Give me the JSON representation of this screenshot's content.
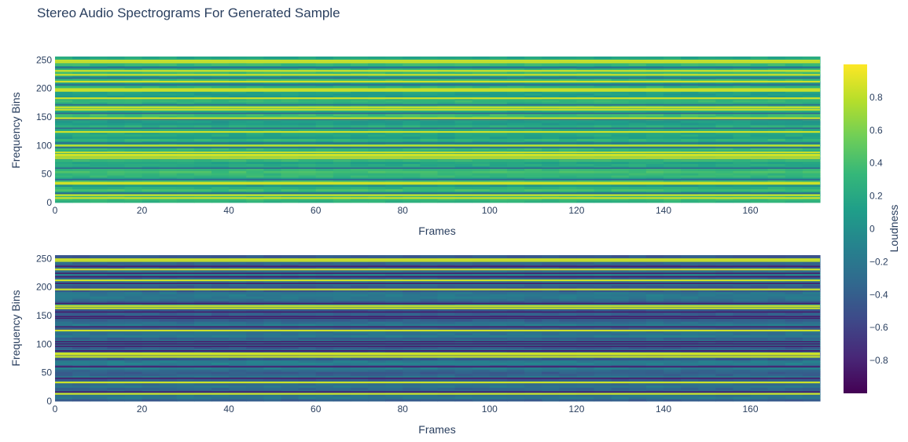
{
  "chart_data": {
    "type": "heatmap",
    "title": "Stereo Audio Spectrograms For Generated Sample",
    "colorscale": "Viridis",
    "colorscale_stops": [
      "#440154",
      "#482878",
      "#3e4989",
      "#31688e",
      "#26828e",
      "#1f9e89",
      "#35b779",
      "#6ece58",
      "#b5de2b",
      "#fde725"
    ],
    "zlim": [
      -1,
      1
    ],
    "colorbar": {
      "title": "Loudness",
      "ticks": [
        "0.8",
        "0.6",
        "0.4",
        "0.2",
        "0",
        "−0.2",
        "−0.4",
        "−0.6",
        "−0.8"
      ]
    },
    "panels": [
      {
        "name": "top",
        "xlabel": "Frames",
        "ylabel": "Frequency Bins",
        "xlim": [
          0,
          176
        ],
        "ylim": [
          0,
          256
        ],
        "xticks": [
          "0",
          "20",
          "40",
          "60",
          "80",
          "100",
          "120",
          "140",
          "160"
        ],
        "yticks": [
          "0",
          "50",
          "100",
          "150",
          "200",
          "250"
        ],
        "base_level": 0.22,
        "bright_bins": [
          8,
          13,
          33,
          35,
          78,
          82,
          84,
          88,
          100,
          124,
          148,
          163,
          167,
          183,
          196,
          199,
          212,
          224,
          231,
          246,
          249
        ],
        "dark_bins": [
          16,
          40,
          60,
          96,
          104,
          130,
          145,
          156,
          171,
          206,
          218,
          236
        ]
      },
      {
        "name": "bottom",
        "xlabel": "Frames",
        "ylabel": "Frequency Bins",
        "xlim": [
          0,
          176
        ],
        "ylim": [
          0,
          256
        ],
        "xticks": [
          "0",
          "20",
          "40",
          "60",
          "80",
          "100",
          "120",
          "140",
          "160"
        ],
        "yticks": [
          "0",
          "50",
          "100",
          "150",
          "200",
          "250"
        ],
        "base_level": -0.3,
        "bright_bins": [
          13,
          33,
          78,
          82,
          84,
          124,
          163,
          167,
          196,
          212,
          231,
          246,
          249
        ],
        "dark_bins": [
          16,
          40,
          60,
          88,
          96,
          100,
          104,
          130,
          145,
          148,
          156,
          171,
          206,
          218,
          224,
          236
        ]
      }
    ]
  }
}
